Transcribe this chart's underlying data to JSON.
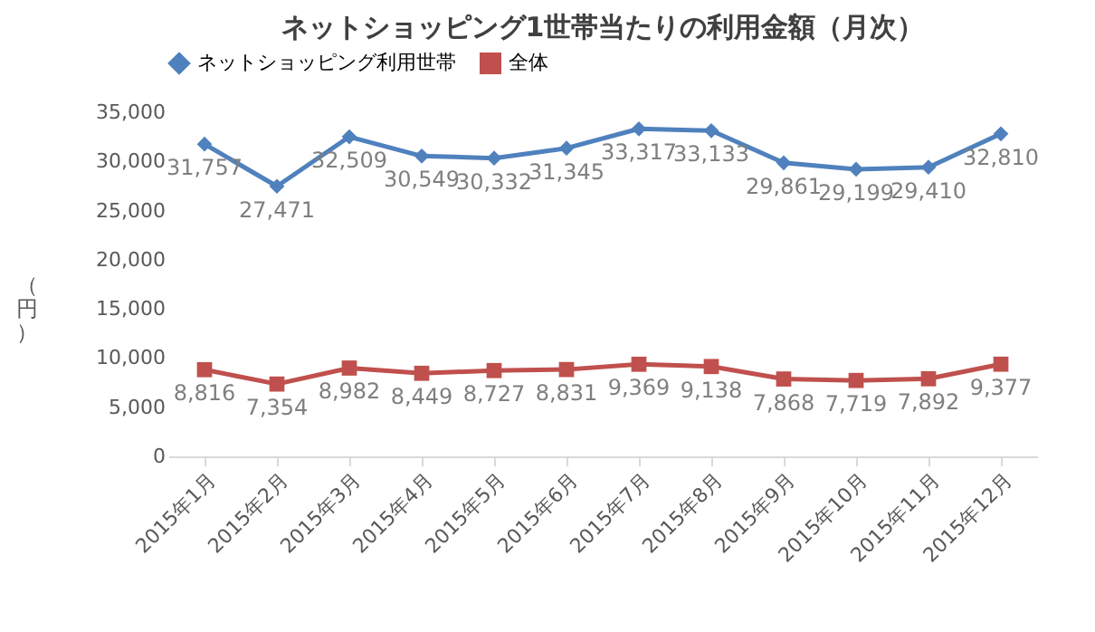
{
  "chart_data": {
    "type": "line",
    "title": "ネットショッピング1世帯当たりの利用金額（月次）",
    "ylabel": "（円）",
    "categories": [
      "2015年1月",
      "2015年2月",
      "2015年3月",
      "2015年4月",
      "2015年5月",
      "2015年6月",
      "2015年7月",
      "2015年8月",
      "2015年9月",
      "2015年10月",
      "2015年11月",
      "2015年12月"
    ],
    "series": [
      {
        "name": "ネットショッピング利用世帯",
        "color": "#4f81bd",
        "marker": "diamond",
        "values": [
          31757,
          27471,
          32509,
          30549,
          30332,
          31345,
          33317,
          33133,
          29861,
          29199,
          29410,
          32810
        ],
        "value_labels": [
          "31,757",
          "27,471",
          "32,509",
          "30,549",
          "30,332",
          "31,345",
          "33,317",
          "33,133",
          "29,861",
          "29,199",
          "29,410",
          "32,810"
        ]
      },
      {
        "name": "全体",
        "color": "#c0504d",
        "marker": "square",
        "values": [
          8816,
          7354,
          8982,
          8449,
          8727,
          8831,
          9369,
          9138,
          7868,
          7719,
          7892,
          9377
        ],
        "value_labels": [
          "8,816",
          "7,354",
          "8,982",
          "8,449",
          "8,727",
          "8,831",
          "9,369",
          "9,138",
          "7,868",
          "7,719",
          "7,892",
          "9,377"
        ]
      }
    ],
    "ylim": [
      0,
      35000
    ],
    "yticks": [
      0,
      {
        "value": 5000,
        "label": "5,000"
      },
      {
        "value": 10000,
        "label": "10,000"
      },
      {
        "value": 15000,
        "label": "15,000"
      },
      {
        "value": 20000,
        "label": "20,000"
      },
      {
        "value": 25000,
        "label": "25,000"
      },
      {
        "value": 30000,
        "label": "30,000"
      },
      {
        "value": 35000,
        "label": "35,000"
      }
    ],
    "legend": "top",
    "grid": false
  }
}
